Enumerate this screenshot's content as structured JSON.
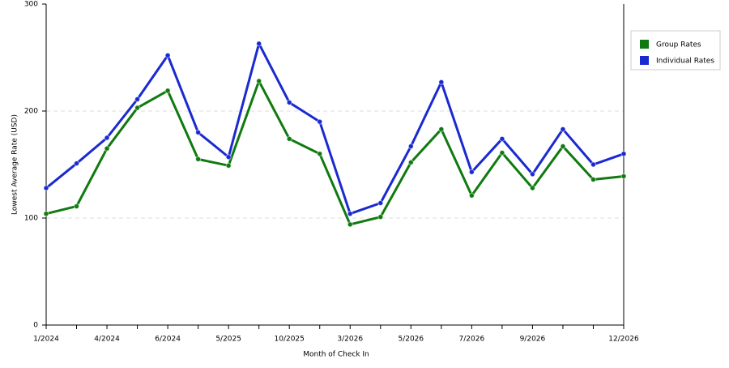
{
  "chart_data": {
    "type": "line",
    "xlabel": "Month of Check In",
    "ylabel": "Lowest Average Rate (USD)",
    "categories": [
      "1/2024",
      null,
      "4/2024",
      null,
      "6/2024",
      null,
      "5/2025",
      null,
      "10/2025",
      null,
      "3/2026",
      null,
      "5/2026",
      null,
      "7/2026",
      null,
      "9/2026",
      null,
      null,
      "12/2026"
    ],
    "series": [
      {
        "name": "Group Rates",
        "color": "#107a10",
        "values": [
          104,
          111,
          165,
          203,
          219,
          155,
          149,
          228,
          174,
          160,
          94,
          101,
          152,
          183,
          121,
          161,
          128,
          167,
          136,
          139
        ]
      },
      {
        "name": "Individual Rates",
        "color": "#1a2ad0",
        "values": [
          128,
          151,
          175,
          211,
          252,
          180,
          157,
          263,
          208,
          190,
          104,
          114,
          167,
          227,
          143,
          174,
          141,
          183,
          150,
          160
        ]
      }
    ],
    "ylim": [
      0,
      300
    ],
    "yticks": [
      0,
      100,
      200,
      300
    ],
    "grid": true,
    "legend": "right"
  }
}
